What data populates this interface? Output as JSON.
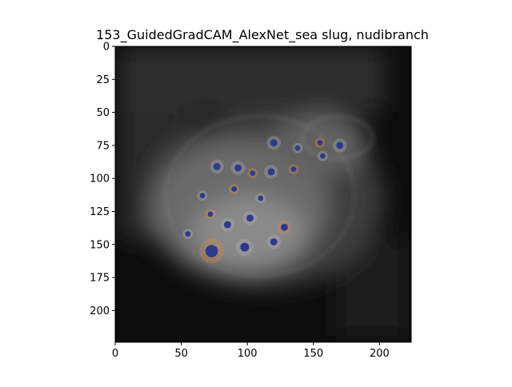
{
  "figure": {
    "title": "153_GuidedGradCAM_AlexNet_sea slug, nudibranch",
    "colors": {
      "background": "#ffffff",
      "map_dark": "#0d0d0d",
      "map_mid": "#3a3a3a",
      "map_bright": "#8a8a8a",
      "spot_blue": "#2b3a8c",
      "spot_orange": "#d88a4a"
    },
    "image": {
      "description": "Guided Grad-CAM saliency overlay of a sea slug (nudibranch): dark grayscale background with a bright oval blob containing dotted spots",
      "extent": [
        0,
        224,
        224,
        0
      ]
    },
    "axes": {
      "xlim": [
        0,
        224
      ],
      "ylim": [
        224,
        0
      ],
      "xticks": [
        0,
        50,
        100,
        150,
        200
      ],
      "yticks": [
        0,
        25,
        50,
        75,
        100,
        125,
        150,
        175,
        200
      ]
    }
  }
}
